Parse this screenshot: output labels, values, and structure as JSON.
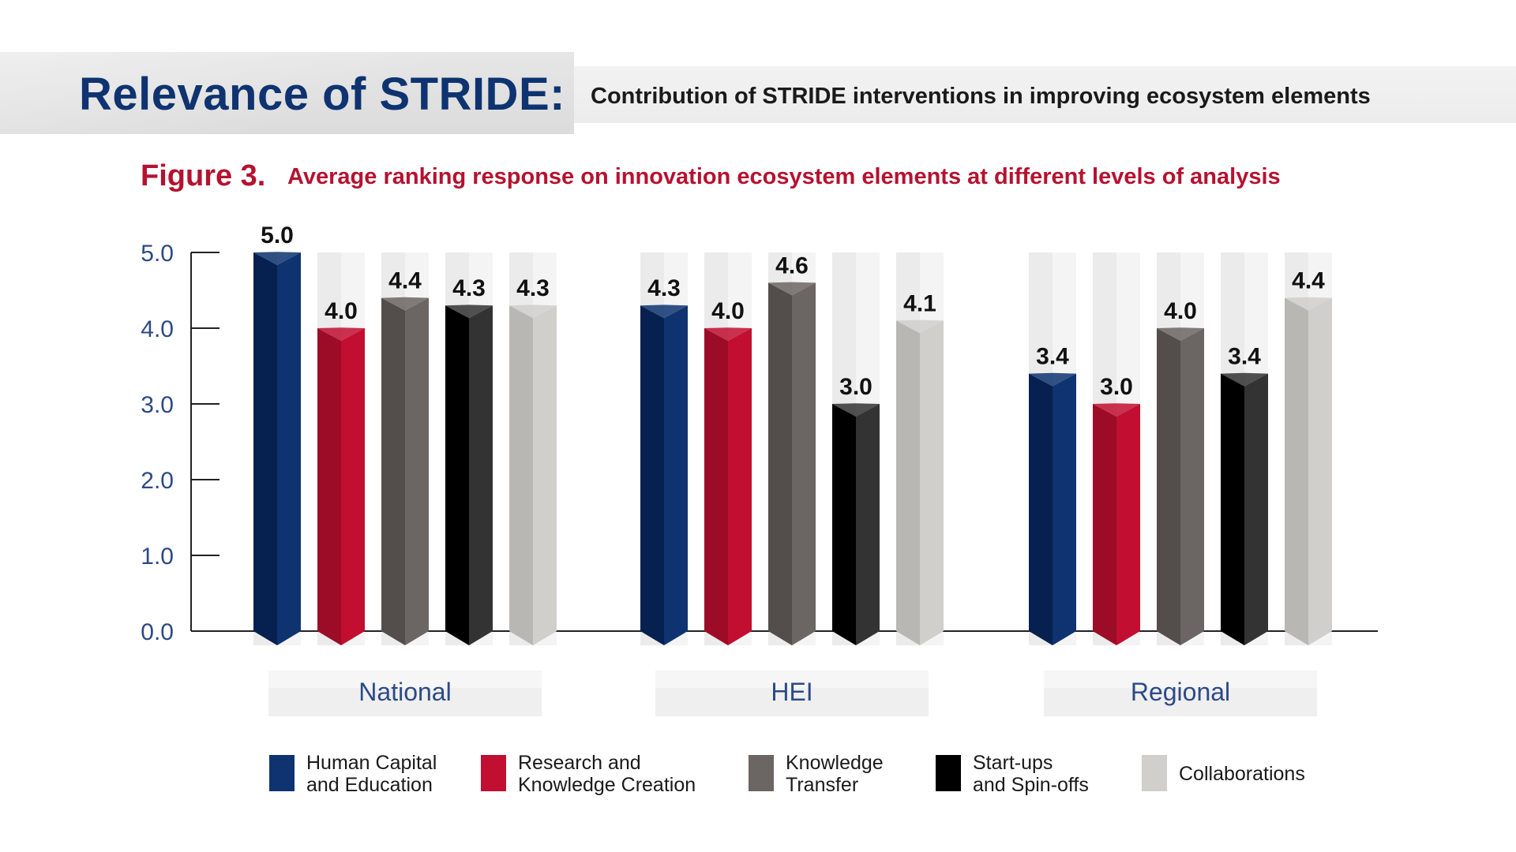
{
  "header": {
    "title": "Relevance of STRIDE:",
    "subtitle": "Contribution of STRIDE interventions in improving ecosystem elements"
  },
  "figure": {
    "label": "Figure 3.",
    "title": "Average ranking response on innovation ecosystem elements at different levels of analysis"
  },
  "chart_data": {
    "type": "bar",
    "title": "Average ranking response on innovation ecosystem elements at different levels of analysis",
    "categories": [
      "National",
      "HEI",
      "Regional"
    ],
    "series": [
      {
        "name": "Human Capital and Education",
        "legend_lines": [
          "Human Capital",
          "and Education"
        ],
        "values": [
          5.0,
          4.3,
          3.4
        ],
        "color": "#0e3370",
        "color_dark": "#06214f"
      },
      {
        "name": "Research and Knowledge Creation",
        "legend_lines": [
          "Research and",
          "Knowledge Creation"
        ],
        "values": [
          4.0,
          4.0,
          3.0
        ],
        "color": "#c20e30",
        "color_dark": "#9c0c27"
      },
      {
        "name": "Knowledge Transfer",
        "legend_lines": [
          "Knowledge",
          "Transfer"
        ],
        "values": [
          4.4,
          4.6,
          4.0
        ],
        "color": "#6b6563",
        "color_dark": "#534e4c"
      },
      {
        "name": "Start-ups and Spin-offs",
        "legend_lines": [
          "Start-ups",
          "and Spin-offs"
        ],
        "values": [
          4.3,
          3.0,
          3.4
        ],
        "color": "#333333",
        "color_dark": "#000000"
      },
      {
        "name": "Collaborations",
        "legend_lines": [
          "Collaborations"
        ],
        "values": [
          4.3,
          4.1,
          4.4
        ],
        "color": "#d0cfcc",
        "color_dark": "#b8b7b4"
      }
    ],
    "value_labels": [
      [
        "5.0",
        "4.3",
        "3.4"
      ],
      [
        "4.0",
        "4.0",
        "3.0"
      ],
      [
        "4.4",
        "4.6",
        "4.0"
      ],
      [
        "4.3",
        "3.0",
        "3.4"
      ],
      [
        "4.3",
        "4.1",
        "4.4"
      ]
    ],
    "yticks": [
      {
        "value": 0,
        "label": "0.0"
      },
      {
        "value": 1,
        "label": "1.0"
      },
      {
        "value": 2,
        "label": "2.0"
      },
      {
        "value": 3,
        "label": "3.0"
      },
      {
        "value": 4,
        "label": "4.0"
      },
      {
        "value": 5,
        "label": "5.0"
      }
    ],
    "ylim": [
      0,
      5
    ],
    "xlabel": "",
    "ylabel": "",
    "grid": false,
    "legend": "bottom"
  }
}
